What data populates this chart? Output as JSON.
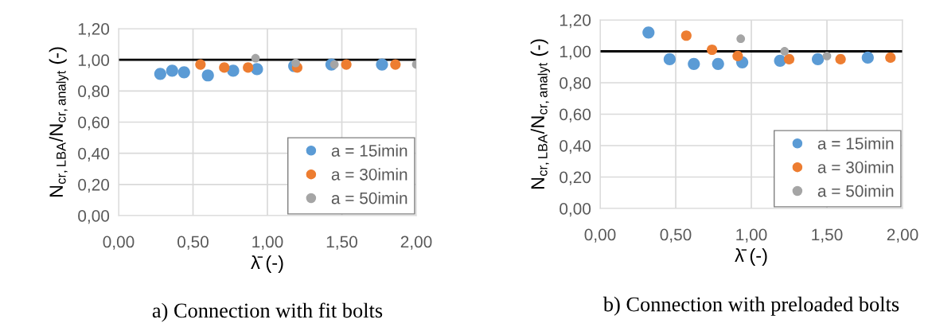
{
  "chart_data": [
    {
      "type": "scatter",
      "title": "a) Connection with fit bolts",
      "xlabel": "λ̄ (-)",
      "ylabel": "N$_{cr,LBA}$/N$_{cr,analyt}$ (-)",
      "series": [
        {
          "name": "a = 15imin",
          "color": "#5b9bd5",
          "x": [
            0.28,
            0.36,
            0.44,
            0.6,
            0.77,
            0.93,
            1.18,
            1.43,
            1.77
          ],
          "values": [
            0.91,
            0.93,
            0.92,
            0.9,
            0.93,
            0.94,
            0.96,
            0.97,
            0.97
          ]
        },
        {
          "name": "a = 30imin",
          "color": "#ed7d31",
          "x": [
            0.55,
            0.71,
            0.87,
            1.2,
            1.53,
            1.86
          ],
          "values": [
            0.97,
            0.95,
            0.95,
            0.95,
            0.97,
            0.97
          ]
        },
        {
          "name": "a = 50imin",
          "color": "#a5a5a5",
          "x": [
            0.92,
            1.19,
            1.45,
            2.0
          ],
          "values": [
            1.01,
            0.98,
            0.97,
            0.97
          ]
        }
      ],
      "xlim": [
        0,
        2
      ],
      "xticks": [
        {
          "value": 0,
          "label": "0,00"
        },
        {
          "value": 0.5,
          "label": "0,50"
        },
        {
          "value": 1,
          "label": "1,00"
        },
        {
          "value": 1.5,
          "label": "1,50"
        },
        {
          "value": 2,
          "label": "2,00"
        }
      ],
      "ylim": [
        0,
        1.2
      ],
      "yticks": [
        {
          "value": 0,
          "label": "0,00"
        },
        {
          "value": 0.2,
          "label": "0,20"
        },
        {
          "value": 0.4,
          "label": "0,40"
        },
        {
          "value": 0.6,
          "label": "0,60"
        },
        {
          "value": 0.8,
          "label": "0,80"
        },
        {
          "value": 1,
          "label": "1,00"
        },
        {
          "value": 1.2,
          "label": "1,20"
        }
      ],
      "ref_lines": [
        {
          "axis": "y",
          "value": 1,
          "color": "#000000"
        }
      ],
      "grid": true,
      "legend": "bottom right",
      "marker": "circle"
    },
    {
      "type": "scatter",
      "title": "b) Connection with preloaded bolts",
      "xlabel": "λ̄ (-)",
      "ylabel": "N$_{cr,LBA}$/N$_{cr,analyt}$ (-)",
      "series": [
        {
          "name": "a = 15imin",
          "color": "#5b9bd5",
          "x": [
            0.32,
            0.46,
            0.62,
            0.78,
            0.94,
            1.19,
            1.44,
            1.77
          ],
          "values": [
            1.12,
            0.95,
            0.92,
            0.92,
            0.93,
            0.94,
            0.95,
            0.96
          ]
        },
        {
          "name": "a = 30imin",
          "color": "#ed7d31",
          "x": [
            0.57,
            0.74,
            0.91,
            1.25,
            1.59,
            1.92
          ],
          "values": [
            1.1,
            1.01,
            0.97,
            0.95,
            0.95,
            0.96
          ]
        },
        {
          "name": "a = 50imin",
          "color": "#a5a5a5",
          "x": [
            0.93,
            1.22,
            1.5
          ],
          "values": [
            1.08,
            1.0,
            0.97
          ]
        }
      ],
      "xlim": [
        0,
        2
      ],
      "xticks": [
        {
          "value": 0,
          "label": "0,00"
        },
        {
          "value": 0.5,
          "label": "0,50"
        },
        {
          "value": 1,
          "label": "1,00"
        },
        {
          "value": 1.5,
          "label": "1,50"
        },
        {
          "value": 2,
          "label": "2,00"
        }
      ],
      "ylim": [
        0,
        1.2
      ],
      "yticks": [
        {
          "value": 0,
          "label": "0,00"
        },
        {
          "value": 0.2,
          "label": "0,20"
        },
        {
          "value": 0.4,
          "label": "0,40"
        },
        {
          "value": 0.6,
          "label": "0,60"
        },
        {
          "value": 0.8,
          "label": "0,80"
        },
        {
          "value": 1,
          "label": "1,00"
        },
        {
          "value": 1.2,
          "label": "1,20"
        }
      ],
      "ref_lines": [
        {
          "axis": "y",
          "value": 1,
          "color": "#000000"
        }
      ],
      "grid": true,
      "legend": "bottom right",
      "marker": "circle"
    }
  ]
}
